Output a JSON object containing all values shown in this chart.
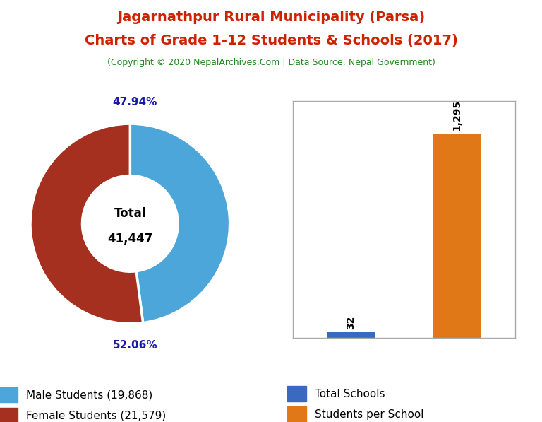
{
  "title_line1": "Jagarnathpur Rural Municipality (Parsa)",
  "title_line2": "Charts of Grade 1-12 Students & Schools (2017)",
  "subtitle": "(Copyright © 2020 NepalArchives.Com | Data Source: Nepal Government)",
  "title_color": "#cc2200",
  "subtitle_color": "#228822",
  "male_students": 19868,
  "female_students": 21579,
  "total_students": 41447,
  "male_pct": 47.94,
  "female_pct": 52.06,
  "male_color": "#4da6d9",
  "female_color": "#a63020",
  "total_schools": 32,
  "students_per_school": 1295,
  "bar_schools_color": "#3a6abf",
  "bar_students_color": "#e07818",
  "donut_label_color": "#1a1aaa",
  "center_text_color": "#000000",
  "bar_label_color": "#000000",
  "background_color": "#ffffff",
  "legend_fontsize": 11,
  "bar_border_color": "#aaaaaa"
}
